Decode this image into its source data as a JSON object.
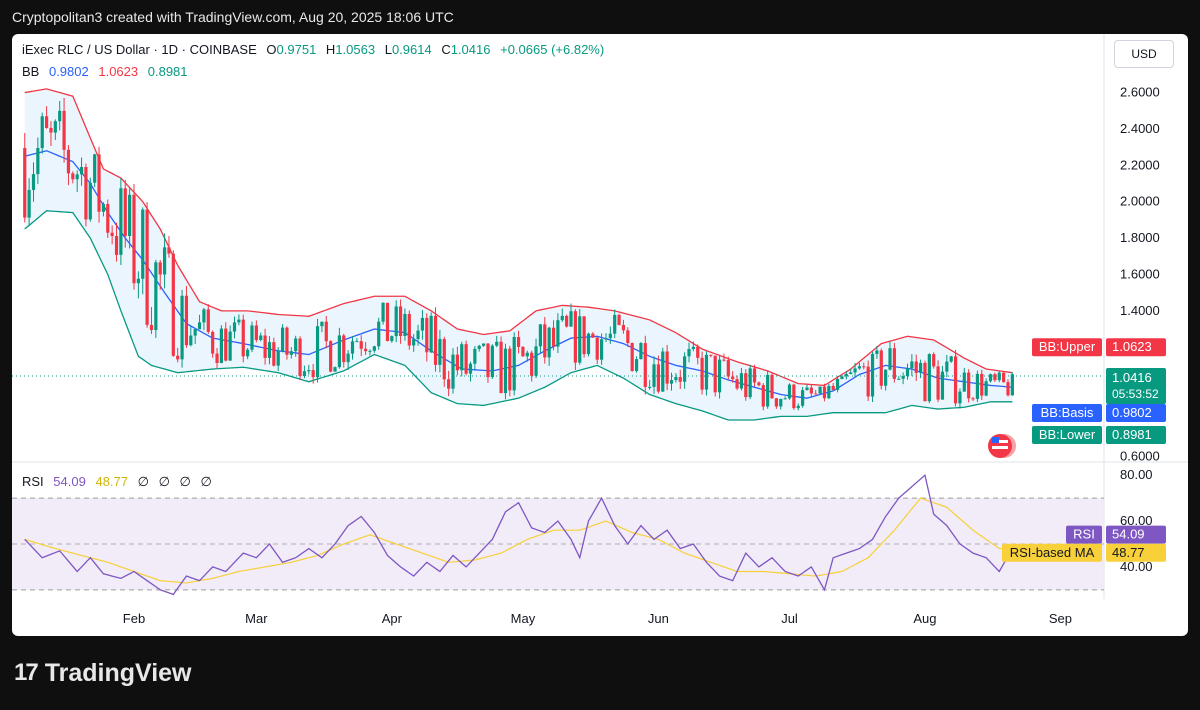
{
  "header": {
    "text": "Cryptopolitan3 created with TradingView.com, Aug 20, 2025 18:06 UTC"
  },
  "legend": {
    "symbol": "iExec RLC / US Dollar · 1D · COINBASE",
    "o_label": "O",
    "o": "0.9751",
    "h_label": "H",
    "h": "1.0563",
    "l_label": "L",
    "l": "0.9614",
    "c_label": "C",
    "c": "1.0416",
    "change": "+0.0665 (+6.82%)",
    "bb_label": "BB",
    "bb_basis": "0.9802",
    "bb_upper": "1.0623",
    "bb_lower": "0.8981",
    "rsi_label": "RSI",
    "rsi": "54.09",
    "rsi_ma": "48.77",
    "empty_vals": [
      "∅",
      "∅",
      "∅",
      "∅"
    ]
  },
  "currency_button": "USD",
  "tags": {
    "bb_upper": {
      "label": "BB:Upper",
      "value": "1.0623"
    },
    "price": {
      "value": "1.0416",
      "countdown": "05:53:52"
    },
    "bb_basis": {
      "label": "BB:Basis",
      "value": "0.9802"
    },
    "bb_lower": {
      "label": "BB:Lower",
      "value": "0.8981"
    },
    "rsi": {
      "label": "RSI",
      "value": "54.09"
    },
    "rsi_ma": {
      "label": "RSI-based MA",
      "value": "48.77"
    }
  },
  "colors": {
    "up": "#089981",
    "down": "#f23645",
    "basis": "#2962ff",
    "upper": "#f23645",
    "lower": "#089981",
    "band_fill": "#e3f2fd",
    "rsi": "#7e57c2",
    "rsi_ma": "#f7d03a"
  },
  "footer": {
    "logo_mark": "17",
    "logo_text": "TradingView"
  },
  "chart_data": {
    "type": "candlestick",
    "x_tick_labels": [
      "Feb",
      "Mar",
      "Apr",
      "May",
      "Jun",
      "Jul",
      "Aug",
      "Sep"
    ],
    "x_tick_days": [
      0,
      28,
      59,
      89,
      120,
      150,
      181,
      212
    ],
    "price_axis": {
      "ticks": [
        "2.6000",
        "2.4000",
        "2.2000",
        "2.0000",
        "1.8000",
        "1.6000",
        "1.4000",
        "1.2000",
        "0.6000"
      ],
      "tick_values": [
        2.6,
        2.4,
        2.2,
        2.0,
        1.8,
        1.6,
        1.4,
        1.2,
        0.6
      ],
      "range": [
        0.58,
        2.68
      ]
    },
    "rsi_axis": {
      "ticks": [
        "80.00",
        "60.00",
        "40.00"
      ],
      "tick_values": [
        80,
        60,
        40
      ],
      "range": [
        26,
        84
      ],
      "band": [
        30,
        70
      ]
    },
    "last_day": 201,
    "bb_upper": [
      [
        -25,
        2.6
      ],
      [
        -20,
        2.62
      ],
      [
        -14,
        2.58
      ],
      [
        -10,
        2.35
      ],
      [
        -7,
        2.18
      ],
      [
        -3,
        2.13
      ],
      [
        2,
        2.0
      ],
      [
        6,
        1.85
      ],
      [
        10,
        1.65
      ],
      [
        15,
        1.45
      ],
      [
        20,
        1.4
      ],
      [
        26,
        1.4
      ],
      [
        33,
        1.38
      ],
      [
        40,
        1.37
      ],
      [
        48,
        1.44
      ],
      [
        55,
        1.48
      ],
      [
        62,
        1.48
      ],
      [
        68,
        1.4
      ],
      [
        74,
        1.3
      ],
      [
        80,
        1.27
      ],
      [
        86,
        1.29
      ],
      [
        92,
        1.4
      ],
      [
        98,
        1.43
      ],
      [
        104,
        1.42
      ],
      [
        110,
        1.4
      ],
      [
        118,
        1.35
      ],
      [
        124,
        1.28
      ],
      [
        130,
        1.19
      ],
      [
        138,
        1.12
      ],
      [
        145,
        1.07
      ],
      [
        152,
        1.0
      ],
      [
        158,
        0.99
      ],
      [
        164,
        1.08
      ],
      [
        171,
        1.22
      ],
      [
        177,
        1.26
      ],
      [
        183,
        1.24
      ],
      [
        190,
        1.14
      ],
      [
        195,
        1.08
      ],
      [
        201,
        1.06
      ]
    ],
    "bb_basis": [
      [
        -25,
        2.25
      ],
      [
        -20,
        2.28
      ],
      [
        -14,
        2.22
      ],
      [
        -10,
        2.1
      ],
      [
        -6,
        1.94
      ],
      [
        -2,
        1.8
      ],
      [
        2,
        1.68
      ],
      [
        7,
        1.5
      ],
      [
        12,
        1.33
      ],
      [
        18,
        1.25
      ],
      [
        25,
        1.22
      ],
      [
        33,
        1.18
      ],
      [
        40,
        1.16
      ],
      [
        48,
        1.24
      ],
      [
        55,
        1.3
      ],
      [
        62,
        1.28
      ],
      [
        68,
        1.18
      ],
      [
        75,
        1.08
      ],
      [
        82,
        1.07
      ],
      [
        88,
        1.1
      ],
      [
        94,
        1.18
      ],
      [
        100,
        1.25
      ],
      [
        106,
        1.26
      ],
      [
        112,
        1.22
      ],
      [
        118,
        1.15
      ],
      [
        124,
        1.1
      ],
      [
        130,
        1.07
      ],
      [
        136,
        1.02
      ],
      [
        142,
        0.98
      ],
      [
        148,
        0.94
      ],
      [
        154,
        0.92
      ],
      [
        160,
        0.96
      ],
      [
        166,
        1.05
      ],
      [
        172,
        1.1
      ],
      [
        178,
        1.08
      ],
      [
        184,
        1.03
      ],
      [
        190,
        1.01
      ],
      [
        196,
        0.99
      ],
      [
        201,
        0.98
      ]
    ],
    "bb_lower": [
      [
        -25,
        1.85
      ],
      [
        -20,
        1.95
      ],
      [
        -14,
        1.94
      ],
      [
        -10,
        1.8
      ],
      [
        -6,
        1.6
      ],
      [
        -3,
        1.4
      ],
      [
        1,
        1.15
      ],
      [
        4,
        1.1
      ],
      [
        10,
        1.06
      ],
      [
        18,
        1.08
      ],
      [
        25,
        1.09
      ],
      [
        33,
        1.06
      ],
      [
        40,
        1.01
      ],
      [
        48,
        1.07
      ],
      [
        55,
        1.16
      ],
      [
        62,
        1.1
      ],
      [
        68,
        0.95
      ],
      [
        74,
        0.89
      ],
      [
        80,
        0.88
      ],
      [
        88,
        0.92
      ],
      [
        94,
        0.98
      ],
      [
        100,
        1.06
      ],
      [
        106,
        1.1
      ],
      [
        112,
        1.03
      ],
      [
        118,
        0.94
      ],
      [
        124,
        0.89
      ],
      [
        130,
        0.85
      ],
      [
        136,
        0.8
      ],
      [
        142,
        0.8
      ],
      [
        148,
        0.82
      ],
      [
        154,
        0.82
      ],
      [
        160,
        0.84
      ],
      [
        166,
        0.84
      ],
      [
        172,
        0.84
      ],
      [
        178,
        0.88
      ],
      [
        184,
        0.86
      ],
      [
        190,
        0.87
      ],
      [
        196,
        0.9
      ],
      [
        201,
        0.9
      ]
    ],
    "rsi": [
      [
        -25,
        52
      ],
      [
        -21,
        44
      ],
      [
        -17,
        47
      ],
      [
        -13,
        38
      ],
      [
        -10,
        44
      ],
      [
        -7,
        37
      ],
      [
        -3,
        35
      ],
      [
        0,
        38
      ],
      [
        3,
        34
      ],
      [
        6,
        30
      ],
      [
        9,
        28
      ],
      [
        12,
        36
      ],
      [
        15,
        34
      ],
      [
        18,
        40
      ],
      [
        21,
        38
      ],
      [
        25,
        46
      ],
      [
        28,
        44
      ],
      [
        31,
        50
      ],
      [
        34,
        42
      ],
      [
        37,
        44
      ],
      [
        40,
        48
      ],
      [
        43,
        44
      ],
      [
        46,
        50
      ],
      [
        49,
        58
      ],
      [
        52,
        62
      ],
      [
        55,
        55
      ],
      [
        58,
        45
      ],
      [
        61,
        40
      ],
      [
        64,
        36
      ],
      [
        67,
        42
      ],
      [
        70,
        38
      ],
      [
        73,
        45
      ],
      [
        76,
        40
      ],
      [
        79,
        46
      ],
      [
        82,
        52
      ],
      [
        85,
        64
      ],
      [
        88,
        68
      ],
      [
        91,
        57
      ],
      [
        94,
        55
      ],
      [
        97,
        60
      ],
      [
        100,
        52
      ],
      [
        102,
        44
      ],
      [
        104,
        60
      ],
      [
        107,
        70
      ],
      [
        110,
        58
      ],
      [
        113,
        50
      ],
      [
        116,
        58
      ],
      [
        119,
        52
      ],
      [
        122,
        56
      ],
      [
        125,
        48
      ],
      [
        128,
        50
      ],
      [
        131,
        42
      ],
      [
        134,
        36
      ],
      [
        137,
        34
      ],
      [
        140,
        46
      ],
      [
        143,
        40
      ],
      [
        146,
        44
      ],
      [
        149,
        38
      ],
      [
        152,
        36
      ],
      [
        155,
        40
      ],
      [
        158,
        30
      ],
      [
        160,
        44
      ],
      [
        163,
        46
      ],
      [
        166,
        48
      ],
      [
        169,
        52
      ],
      [
        172,
        62
      ],
      [
        175,
        70
      ],
      [
        178,
        75
      ],
      [
        181,
        80
      ],
      [
        183,
        63
      ],
      [
        186,
        58
      ],
      [
        189,
        50
      ],
      [
        192,
        46
      ],
      [
        195,
        44
      ],
      [
        198,
        38
      ],
      [
        201,
        48
      ],
      [
        203,
        56
      ],
      [
        206,
        52
      ],
      [
        209,
        50
      ],
      [
        212,
        54
      ],
      [
        215,
        50
      ],
      [
        218,
        52
      ],
      [
        221,
        54
      ]
    ],
    "rsi_ma": [
      [
        -25,
        52
      ],
      [
        -18,
        48
      ],
      [
        -12,
        45
      ],
      [
        -6,
        42
      ],
      [
        0,
        38
      ],
      [
        6,
        34
      ],
      [
        12,
        33
      ],
      [
        18,
        35
      ],
      [
        24,
        38
      ],
      [
        30,
        40
      ],
      [
        36,
        42
      ],
      [
        42,
        45
      ],
      [
        48,
        50
      ],
      [
        54,
        54
      ],
      [
        60,
        50
      ],
      [
        66,
        46
      ],
      [
        72,
        42
      ],
      [
        78,
        43
      ],
      [
        84,
        46
      ],
      [
        90,
        52
      ],
      [
        96,
        56
      ],
      [
        102,
        56
      ],
      [
        108,
        60
      ],
      [
        114,
        55
      ],
      [
        120,
        52
      ],
      [
        126,
        46
      ],
      [
        132,
        42
      ],
      [
        138,
        38
      ],
      [
        144,
        38
      ],
      [
        150,
        37
      ],
      [
        156,
        36
      ],
      [
        162,
        38
      ],
      [
        168,
        44
      ],
      [
        174,
        56
      ],
      [
        180,
        70
      ],
      [
        186,
        66
      ],
      [
        192,
        56
      ],
      [
        198,
        48
      ],
      [
        204,
        48
      ],
      [
        210,
        50
      ],
      [
        216,
        50
      ],
      [
        221,
        50
      ]
    ]
  }
}
